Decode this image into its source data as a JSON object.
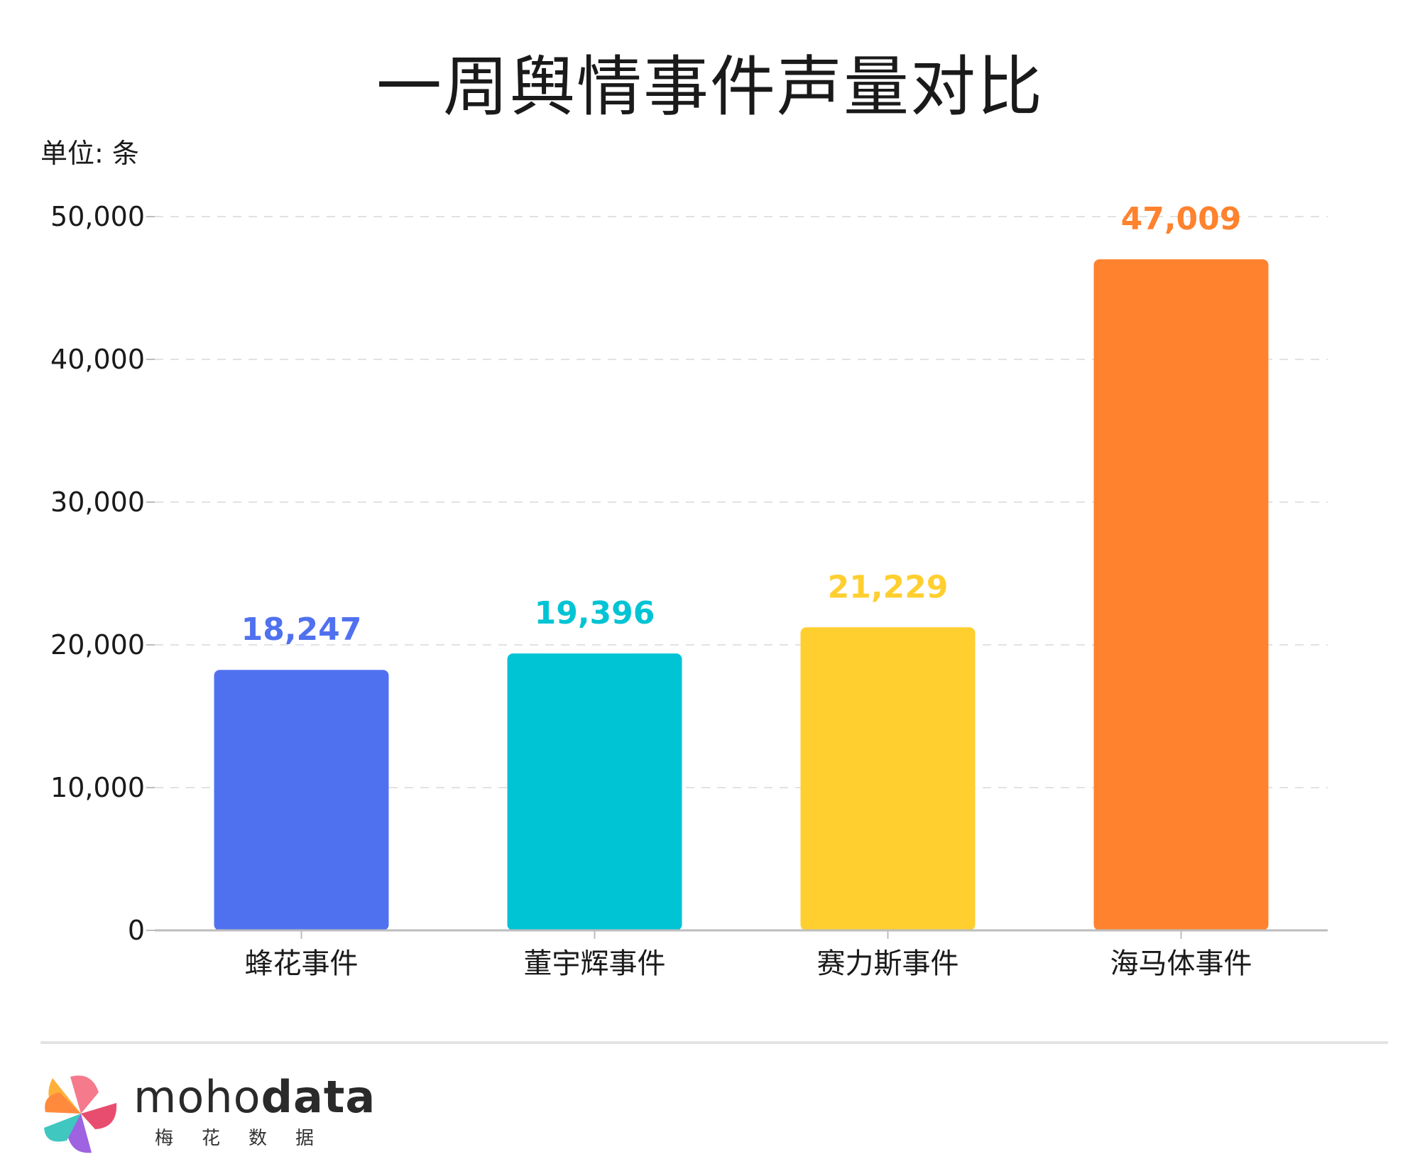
{
  "title": "一周舆情事件声量对比",
  "unit_label": "单位: 条",
  "chart_data": {
    "type": "bar",
    "title": "一周舆情事件声量对比",
    "xlabel": "",
    "ylabel": "单位: 条",
    "categories": [
      "蜂花事件",
      "董宇辉事件",
      "赛力斯事件",
      "海马体事件"
    ],
    "values": [
      18247,
      19396,
      21229,
      47009
    ],
    "value_labels": [
      "18,247",
      "19,396",
      "21,229",
      "47,009"
    ],
    "colors": [
      "#5071ef",
      "#00c4d4",
      "#ffcf30",
      "#ff822e"
    ],
    "ylim": [
      0,
      50000
    ],
    "yticks": [
      0,
      10000,
      20000,
      30000,
      40000,
      50000
    ],
    "ytick_labels": [
      "0",
      "10,000",
      "20,000",
      "30,000",
      "40,000",
      "50,000"
    ],
    "grid": true,
    "grid_style": "dashed"
  },
  "logo": {
    "icon": "pinwheel-logo-icon",
    "brand_part1": "moho",
    "brand_part2": "data",
    "brand_cn": "梅花数据"
  }
}
